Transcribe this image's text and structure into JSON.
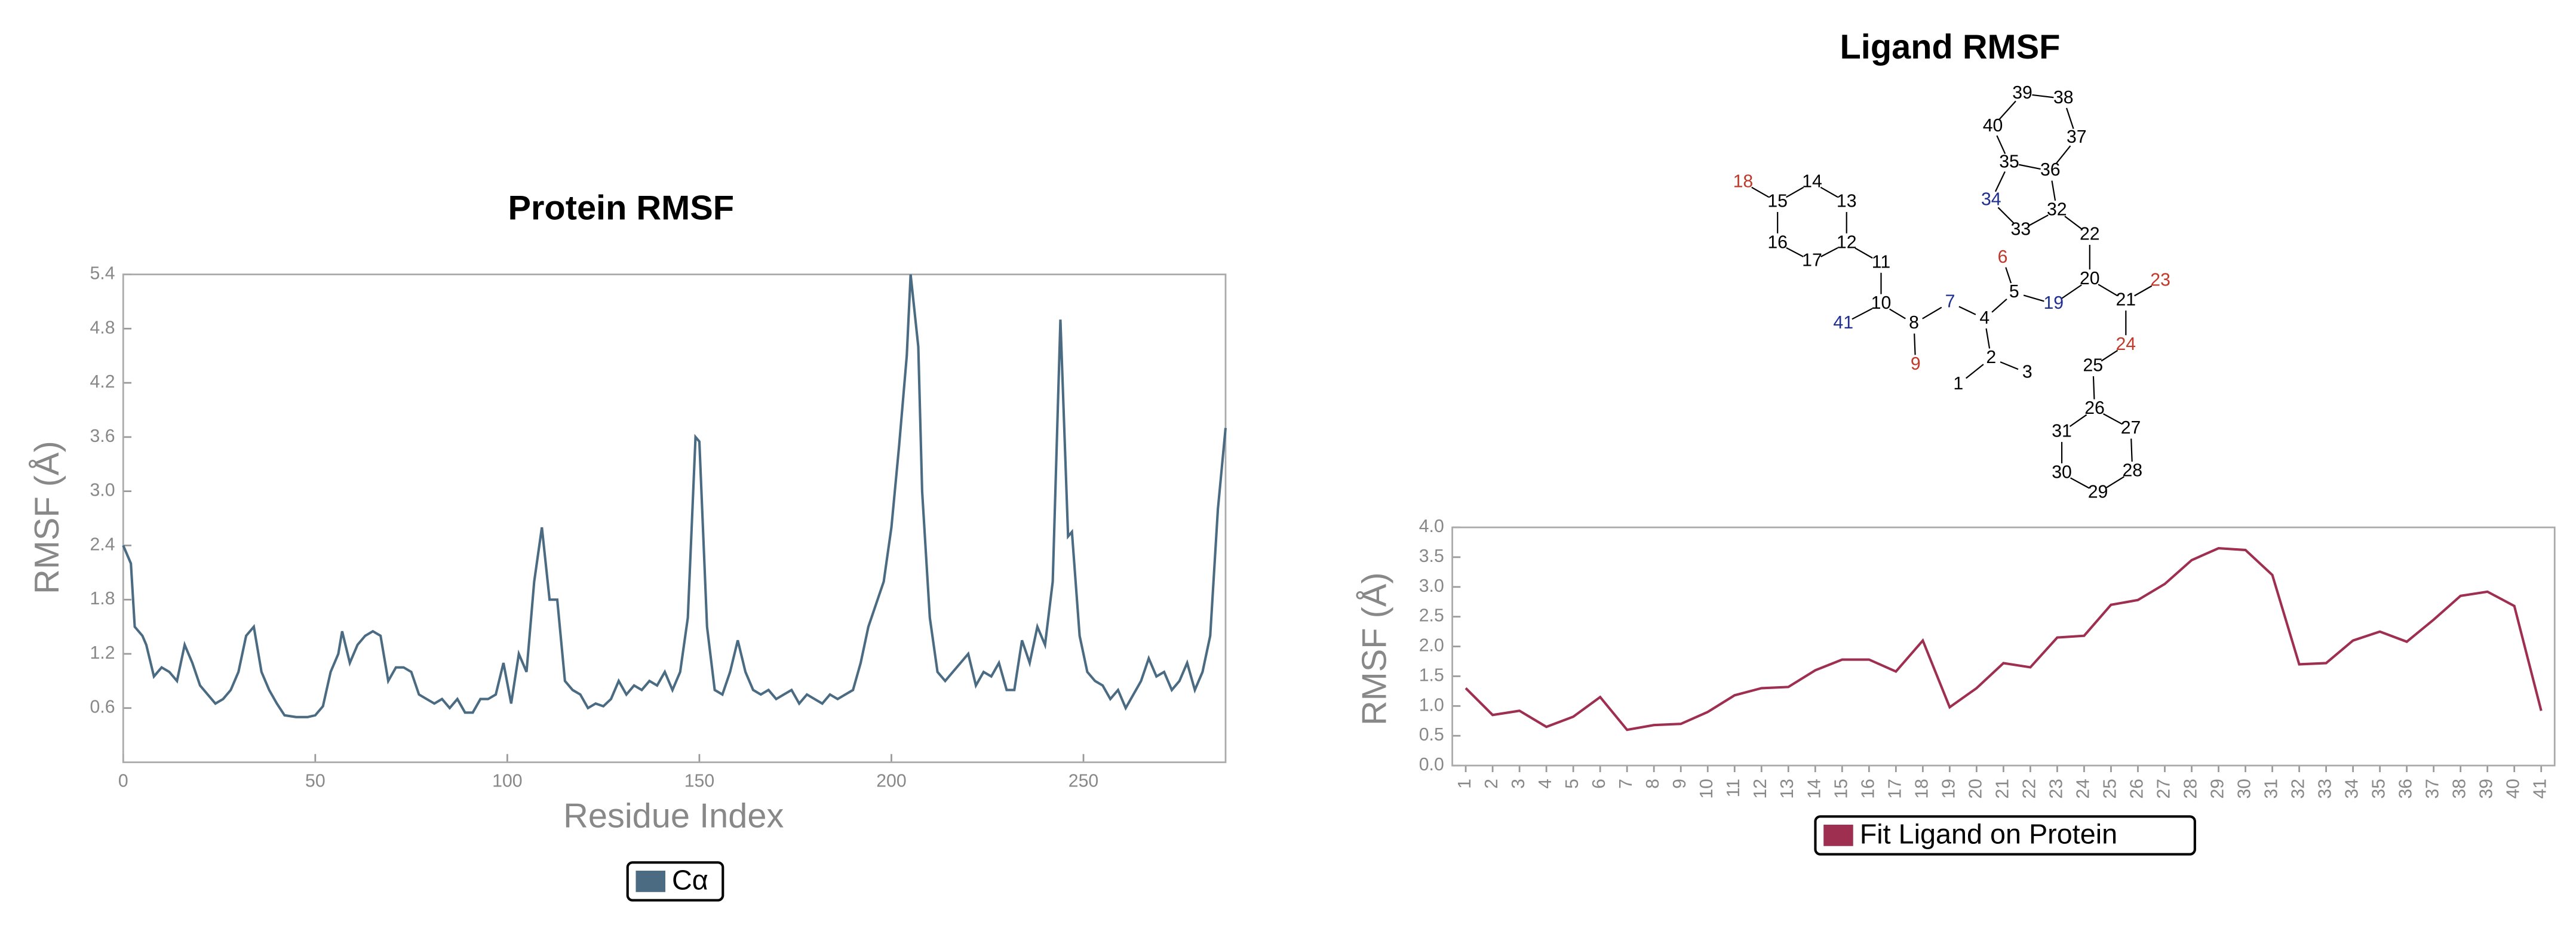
{
  "chart_data": [
    {
      "type": "line",
      "title": "Protein RMSF",
      "xlabel": "Residue Index",
      "ylabel": "RMSF (Å)",
      "xlim": [
        0,
        287
      ],
      "xticks": [
        0,
        50,
        100,
        150,
        200,
        250
      ],
      "ylim": [
        0,
        5.4
      ],
      "yticks": [
        0.6,
        1.2,
        1.8,
        2.4,
        {
          "value": 3,
          "label": "3.0"
        },
        3.6,
        4.2,
        4.8,
        5.4
      ],
      "x": [
        0,
        2,
        3,
        5,
        6,
        8,
        10,
        12,
        14,
        16,
        18,
        20,
        22,
        24,
        26,
        28,
        30,
        32,
        34,
        36,
        38,
        40,
        42,
        45,
        48,
        50,
        52,
        54,
        56,
        57,
        59,
        61,
        63,
        65,
        67,
        69,
        71,
        73,
        75,
        77,
        79,
        81,
        83,
        85,
        87,
        89,
        91,
        93,
        95,
        97,
        99,
        101,
        103,
        105,
        107,
        109,
        111,
        113,
        115,
        117,
        119,
        121,
        123,
        125,
        127,
        129,
        131,
        133,
        135,
        137,
        139,
        141,
        143,
        145,
        147,
        149,
        150,
        152,
        154,
        156,
        158,
        160,
        162,
        164,
        166,
        168,
        170,
        172,
        174,
        176,
        178,
        180,
        182,
        184,
        186,
        188,
        190,
        192,
        194,
        196,
        198,
        200,
        202,
        204,
        205,
        206,
        207,
        208,
        210,
        212,
        214,
        216,
        218,
        220,
        222,
        224,
        226,
        228,
        230,
        232,
        234,
        236,
        238,
        240,
        242,
        244,
        246,
        247,
        249,
        251,
        253,
        255,
        257,
        259,
        261,
        263,
        265,
        267,
        269,
        271,
        273,
        275,
        277,
        279,
        281,
        283,
        285,
        287
      ],
      "series": [
        {
          "name": "Cα",
          "color": "#4a6b82",
          "values": [
            2.4,
            2.2,
            1.5,
            1.4,
            1.3,
            0.95,
            1.05,
            1.0,
            0.9,
            1.3,
            1.1,
            0.85,
            0.75,
            0.65,
            0.7,
            0.8,
            1.0,
            1.4,
            1.5,
            1.0,
            0.8,
            0.65,
            0.52,
            0.5,
            0.5,
            0.52,
            0.62,
            1.0,
            1.2,
            1.45,
            1.1,
            1.3,
            1.4,
            1.45,
            1.4,
            0.9,
            1.05,
            1.05,
            1.0,
            0.75,
            0.7,
            0.65,
            0.7,
            0.6,
            0.7,
            0.55,
            0.55,
            0.7,
            0.7,
            0.75,
            1.1,
            0.65,
            1.2,
            1.0,
            2.0,
            2.6,
            1.8,
            1.8,
            0.9,
            0.8,
            0.75,
            0.6,
            0.65,
            0.62,
            0.7,
            0.9,
            0.75,
            0.85,
            0.8,
            0.9,
            0.85,
            1.0,
            0.8,
            1.0,
            1.6,
            3.6,
            3.55,
            1.5,
            0.8,
            0.75,
            1.0,
            1.35,
            1.0,
            0.8,
            0.75,
            0.8,
            0.7,
            0.75,
            0.8,
            0.65,
            0.75,
            0.7,
            0.65,
            0.75,
            0.7,
            0.75,
            0.8,
            1.1,
            1.5,
            1.75,
            2.0,
            2.6,
            3.5,
            4.5,
            5.4,
            5.0,
            4.6,
            3.0,
            1.6,
            1.0,
            0.9,
            1.0,
            1.1,
            1.2,
            0.85,
            1.0,
            0.95,
            1.1,
            0.8,
            0.8,
            1.35,
            1.1,
            1.5,
            1.3,
            2.0,
            4.9,
            2.5,
            2.55,
            1.4,
            1.0,
            0.9,
            0.85,
            0.7,
            0.8,
            0.6,
            0.75,
            0.9,
            1.15,
            0.95,
            1.0,
            0.8,
            0.9,
            1.1,
            0.8,
            1.0,
            1.4,
            2.8,
            3.7
          ]
        }
      ]
    },
    {
      "type": "line",
      "title": "Ligand RMSF",
      "ylabel": "RMSF (Å)",
      "categories": [
        "1",
        "2",
        "3",
        "4",
        "5",
        "6",
        "7",
        "8",
        "9",
        "10",
        "11",
        "12",
        "13",
        "14",
        "15",
        "16",
        "17",
        "18",
        "19",
        "20",
        "21",
        "22",
        "23",
        "24",
        "25",
        "26",
        "27",
        "28",
        "29",
        "30",
        "31",
        "32",
        "33",
        "34",
        "35",
        "36",
        "37",
        "38",
        "39",
        "40",
        "41"
      ],
      "ylim": [
        0,
        4
      ],
      "yticks": [
        {
          "value": 0,
          "label": "0.0"
        },
        0.5,
        {
          "value": 1,
          "label": "1.0"
        },
        1.5,
        {
          "value": 2,
          "label": "2.0"
        },
        2.5,
        {
          "value": 3,
          "label": "3.0"
        },
        3.5,
        {
          "value": 4,
          "label": "4.0"
        }
      ],
      "series": [
        {
          "name": "Fit Ligand on Protein",
          "color": "#9e2f50",
          "values": [
            1.3,
            0.85,
            0.92,
            0.65,
            0.82,
            1.15,
            0.6,
            0.68,
            0.7,
            0.9,
            1.18,
            1.3,
            1.32,
            1.6,
            1.78,
            1.78,
            1.58,
            2.1,
            0.98,
            1.3,
            1.72,
            1.65,
            2.15,
            2.18,
            2.7,
            2.78,
            3.05,
            3.45,
            3.65,
            3.62,
            3.2,
            1.7,
            1.72,
            2.1,
            2.25,
            2.08,
            2.45,
            2.85,
            2.92,
            2.68,
            0.92
          ]
        }
      ],
      "molecule": {
        "atoms": [
          {
            "label": "1",
            "color": "#000"
          },
          {
            "label": "2",
            "color": "#000"
          },
          {
            "label": "3",
            "color": "#000"
          },
          {
            "label": "4",
            "color": "#000"
          },
          {
            "label": "5",
            "color": "#000"
          },
          {
            "label": "6",
            "color": "#c0392b"
          },
          {
            "label": "7",
            "color": "#1f2f8f"
          },
          {
            "label": "8",
            "color": "#000"
          },
          {
            "label": "9",
            "color": "#c0392b"
          },
          {
            "label": "10",
            "color": "#000"
          },
          {
            "label": "11",
            "color": "#000"
          },
          {
            "label": "12",
            "color": "#000"
          },
          {
            "label": "13",
            "color": "#000"
          },
          {
            "label": "14",
            "color": "#000"
          },
          {
            "label": "15",
            "color": "#000"
          },
          {
            "label": "16",
            "color": "#000"
          },
          {
            "label": "17",
            "color": "#000"
          },
          {
            "label": "18",
            "color": "#c0392b"
          },
          {
            "label": "19",
            "color": "#1f2f8f"
          },
          {
            "label": "20",
            "color": "#000"
          },
          {
            "label": "21",
            "color": "#000"
          },
          {
            "label": "22",
            "color": "#000"
          },
          {
            "label": "23",
            "color": "#c0392b"
          },
          {
            "label": "24",
            "color": "#c0392b"
          },
          {
            "label": "25",
            "color": "#000"
          },
          {
            "label": "26",
            "color": "#000"
          },
          {
            "label": "27",
            "color": "#000"
          },
          {
            "label": "28",
            "color": "#000"
          },
          {
            "label": "29",
            "color": "#000"
          },
          {
            "label": "30",
            "color": "#000"
          },
          {
            "label": "31",
            "color": "#000"
          },
          {
            "label": "32",
            "color": "#000"
          },
          {
            "label": "33",
            "color": "#000"
          },
          {
            "label": "34",
            "color": "#1f2f8f"
          },
          {
            "label": "35",
            "color": "#000"
          },
          {
            "label": "36",
            "color": "#000"
          },
          {
            "label": "37",
            "color": "#000"
          },
          {
            "label": "38",
            "color": "#000"
          },
          {
            "label": "39",
            "color": "#000"
          },
          {
            "label": "40",
            "color": "#000"
          },
          {
            "label": "41",
            "color": "#1f2f8f"
          }
        ]
      }
    }
  ]
}
